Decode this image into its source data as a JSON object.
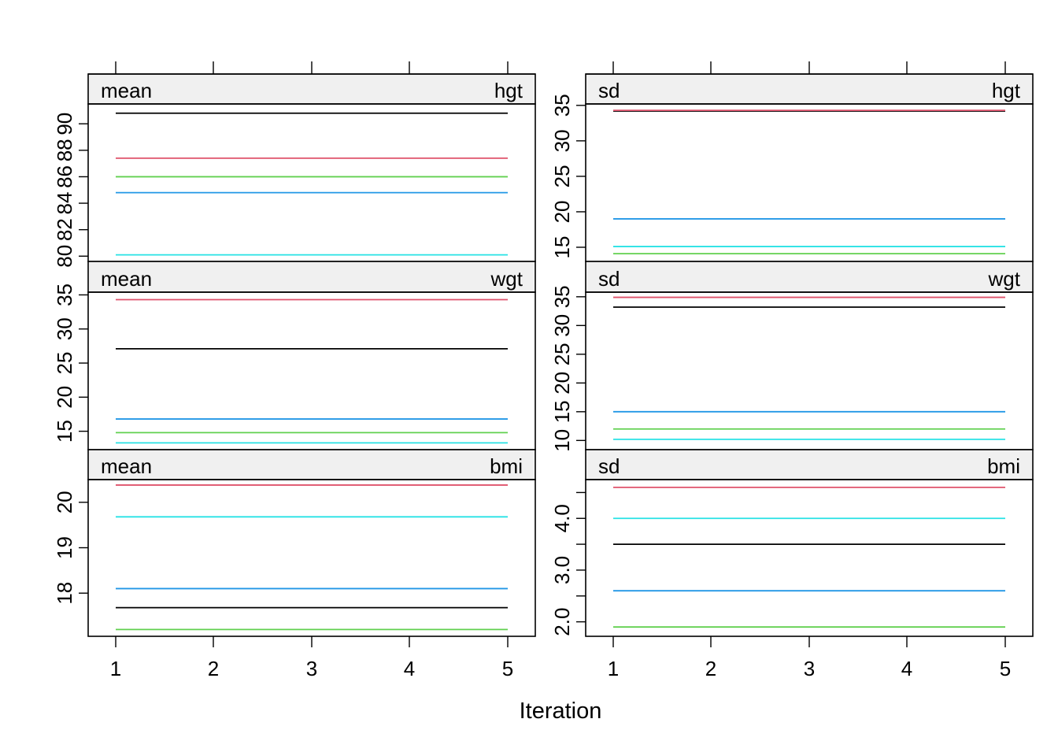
{
  "xlabel": "Iteration",
  "x_ticks": [
    1,
    2,
    3,
    4,
    5
  ],
  "colors": {
    "black": "#000000",
    "red": "#DF536B",
    "green": "#61D04F",
    "blue": "#2297E6",
    "cyan": "#28E2E5",
    "strip_bg": "#F0F0F0"
  },
  "chart_data": [
    {
      "type": "line",
      "stat": "mean",
      "variable": "hgt",
      "x": [
        1,
        2,
        3,
        4,
        5
      ],
      "y_ticks": [
        80,
        82,
        84,
        86,
        88,
        90
      ],
      "ylim": [
        79.6,
        91.5
      ],
      "series": [
        {
          "color": "#000000",
          "values": [
            90.8,
            90.8,
            90.8,
            90.8,
            90.8
          ]
        },
        {
          "color": "#DF536B",
          "values": [
            87.4,
            87.4,
            87.4,
            87.4,
            87.4
          ]
        },
        {
          "color": "#61D04F",
          "values": [
            86.0,
            86.0,
            86.0,
            86.0,
            86.0
          ]
        },
        {
          "color": "#2297E6",
          "values": [
            84.8,
            84.8,
            84.8,
            84.8,
            84.8
          ]
        },
        {
          "color": "#28E2E5",
          "values": [
            80.1,
            80.1,
            80.1,
            80.1,
            80.1
          ]
        }
      ]
    },
    {
      "type": "line",
      "stat": "sd",
      "variable": "hgt",
      "x": [
        1,
        2,
        3,
        4,
        5
      ],
      "y_ticks": [
        15,
        20,
        25,
        30,
        35
      ],
      "ylim": [
        13.0,
        35.2
      ],
      "series": [
        {
          "color": "#000000",
          "values": [
            34.2,
            34.2,
            34.2,
            34.2,
            34.2
          ]
        },
        {
          "color": "#DF536B",
          "values": [
            34.3,
            34.3,
            34.3,
            34.3,
            34.3
          ]
        },
        {
          "color": "#2297E6",
          "values": [
            19.0,
            19.0,
            19.0,
            19.0,
            19.0
          ]
        },
        {
          "color": "#28E2E5",
          "values": [
            15.1,
            15.1,
            15.1,
            15.1,
            15.1
          ]
        },
        {
          "color": "#61D04F",
          "values": [
            14.1,
            14.1,
            14.1,
            14.1,
            14.1
          ]
        }
      ]
    },
    {
      "type": "line",
      "stat": "mean",
      "variable": "wgt",
      "x": [
        1,
        2,
        3,
        4,
        5
      ],
      "y_ticks": [
        15,
        20,
        25,
        30,
        35
      ],
      "ylim": [
        12.3,
        35.4
      ],
      "series": [
        {
          "color": "#DF536B",
          "values": [
            34.3,
            34.3,
            34.3,
            34.3,
            34.3
          ]
        },
        {
          "color": "#000000",
          "values": [
            27.1,
            27.1,
            27.1,
            27.1,
            27.1
          ]
        },
        {
          "color": "#2297E6",
          "values": [
            16.8,
            16.8,
            16.8,
            16.8,
            16.8
          ]
        },
        {
          "color": "#61D04F",
          "values": [
            14.8,
            14.8,
            14.8,
            14.8,
            14.8
          ]
        },
        {
          "color": "#28E2E5",
          "values": [
            13.3,
            13.3,
            13.3,
            13.3,
            13.3
          ]
        }
      ]
    },
    {
      "type": "line",
      "stat": "sd",
      "variable": "wgt",
      "x": [
        1,
        2,
        3,
        4,
        5
      ],
      "y_ticks": [
        10,
        15,
        20,
        25,
        30,
        35
      ],
      "ylim": [
        8.4,
        35.8
      ],
      "series": [
        {
          "color": "#DF536B",
          "values": [
            34.9,
            34.9,
            34.9,
            34.9,
            34.9
          ]
        },
        {
          "color": "#000000",
          "values": [
            33.2,
            33.2,
            33.2,
            33.2,
            33.2
          ]
        },
        {
          "color": "#2297E6",
          "values": [
            15.0,
            15.0,
            15.0,
            15.0,
            15.0
          ]
        },
        {
          "color": "#61D04F",
          "values": [
            12.0,
            12.0,
            12.0,
            12.0,
            12.0
          ]
        },
        {
          "color": "#28E2E5",
          "values": [
            10.2,
            10.2,
            10.2,
            10.2,
            10.2
          ]
        }
      ]
    },
    {
      "type": "line",
      "stat": "mean",
      "variable": "bmi",
      "x": [
        1,
        2,
        3,
        4,
        5
      ],
      "y_ticks": [
        18,
        19,
        20
      ],
      "ylim": [
        17.05,
        20.5
      ],
      "series": [
        {
          "color": "#DF536B",
          "values": [
            20.38,
            20.38,
            20.38,
            20.38,
            20.38
          ]
        },
        {
          "color": "#28E2E5",
          "values": [
            19.68,
            19.68,
            19.68,
            19.68,
            19.68
          ]
        },
        {
          "color": "#2297E6",
          "values": [
            18.1,
            18.1,
            18.1,
            18.1,
            18.1
          ]
        },
        {
          "color": "#000000",
          "values": [
            17.68,
            17.68,
            17.68,
            17.68,
            17.68
          ]
        },
        {
          "color": "#61D04F",
          "values": [
            17.2,
            17.2,
            17.2,
            17.2,
            17.2
          ]
        }
      ]
    },
    {
      "type": "line",
      "stat": "sd",
      "variable": "bmi",
      "x": [
        1,
        2,
        3,
        4,
        5
      ],
      "y_ticks": [
        2.0,
        3.0,
        4.0
      ],
      "y_tick_labels": [
        "2.0",
        "3.0",
        "4.0"
      ],
      "y_minor_ticks": [
        2.5,
        3.5,
        4.5
      ],
      "ylim": [
        1.72,
        4.75
      ],
      "series": [
        {
          "color": "#DF536B",
          "values": [
            4.6,
            4.6,
            4.6,
            4.6,
            4.6
          ]
        },
        {
          "color": "#28E2E5",
          "values": [
            4.0,
            4.0,
            4.0,
            4.0,
            4.0
          ]
        },
        {
          "color": "#000000",
          "values": [
            3.5,
            3.5,
            3.5,
            3.5,
            3.5
          ]
        },
        {
          "color": "#2297E6",
          "values": [
            2.6,
            2.6,
            2.6,
            2.6,
            2.6
          ]
        },
        {
          "color": "#61D04F",
          "values": [
            1.9,
            1.9,
            1.9,
            1.9,
            1.9
          ]
        }
      ]
    }
  ]
}
